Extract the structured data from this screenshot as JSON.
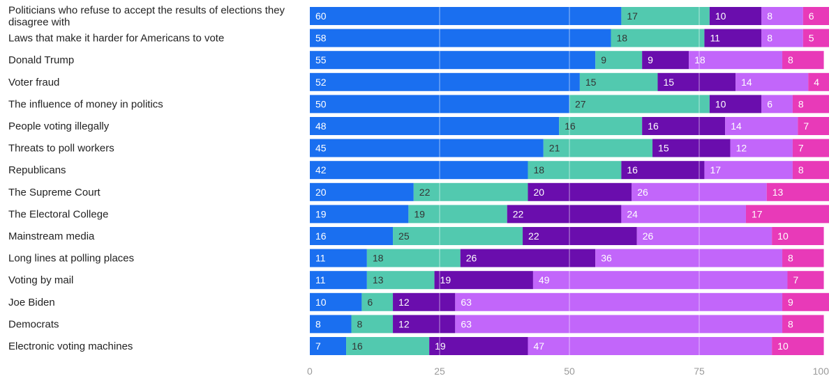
{
  "chart_data": {
    "type": "bar",
    "orientation": "horizontal",
    "stacked": true,
    "xlim": [
      0,
      100
    ],
    "xticks": [
      "0",
      "25",
      "50",
      "75",
      "100"
    ],
    "grid": true,
    "legend": "none",
    "categories": [
      "Politicians who refuse to accept the results of elections they disagree with",
      "Laws that make it harder for Americans to vote",
      "Donald Trump",
      "Voter fraud",
      "The influence of money in politics",
      "People voting illegally",
      "Threats to poll workers",
      "Republicans",
      "The Supreme Court",
      "The Electoral College",
      "Mainstream media",
      "Long lines at polling places",
      "Voting by mail",
      "Joe Biden",
      "Democrats",
      "Electronic voting machines"
    ],
    "series": [
      {
        "color": "#1a6ff0",
        "label_color": "#ffffff",
        "values": [
          60,
          58,
          55,
          52,
          50,
          48,
          45,
          42,
          20,
          19,
          16,
          11,
          11,
          10,
          8,
          7
        ]
      },
      {
        "color": "#52c9af",
        "label_color": "#333333",
        "values": [
          17,
          18,
          9,
          15,
          27,
          16,
          21,
          18,
          22,
          19,
          25,
          18,
          13,
          6,
          8,
          16
        ]
      },
      {
        "color": "#6a0dad",
        "label_color": "#ffffff",
        "values": [
          10,
          11,
          9,
          15,
          10,
          16,
          15,
          16,
          20,
          22,
          22,
          26,
          19,
          12,
          12,
          19
        ]
      },
      {
        "color": "#c266fa",
        "label_color": "#ffffff",
        "values": [
          8,
          8,
          18,
          14,
          6,
          14,
          12,
          17,
          26,
          24,
          26,
          36,
          49,
          63,
          63,
          47
        ]
      },
      {
        "color": "#e83ab8",
        "label_color": "#ffffff",
        "values": [
          6,
          5,
          8,
          4,
          8,
          7,
          7,
          8,
          13,
          17,
          10,
          8,
          7,
          9,
          8,
          10
        ]
      }
    ]
  }
}
